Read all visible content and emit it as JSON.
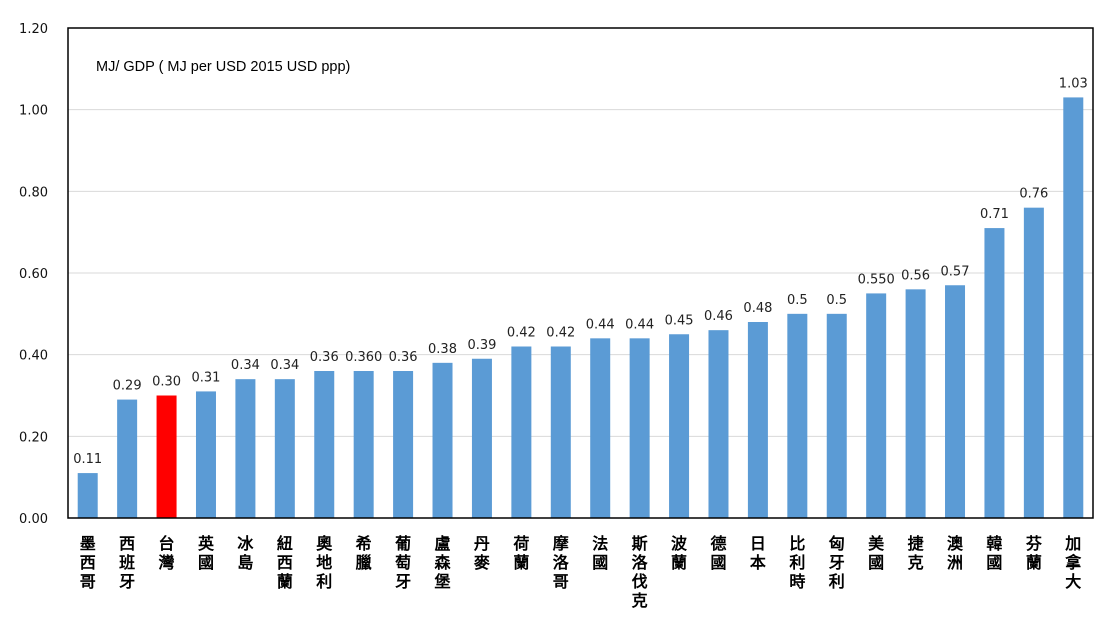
{
  "chart_data": {
    "type": "bar",
    "title": "MJ/ GDP ( MJ per  USD 2015 USD ppp)",
    "xlabel": "",
    "ylabel": "",
    "ylim": [
      0,
      1.2
    ],
    "yticks": [
      "0.00",
      "0.20",
      "0.40",
      "0.60",
      "0.80",
      "1.00",
      "1.20"
    ],
    "grid": true,
    "legend": "none",
    "bar_color": "#5B9BD5",
    "highlight_color": "#FF0000",
    "highlight_category": "台灣",
    "categories": [
      "墨西哥",
      "西班牙",
      "台灣",
      "英國",
      "冰島",
      "紐西蘭",
      "奧地利",
      "希臘",
      "葡萄牙",
      "盧森堡",
      "丹麥",
      "荷蘭",
      "摩洛哥",
      "法國",
      "斯洛伐克",
      "波蘭",
      "德國",
      "日本",
      "比利時",
      "匈牙利",
      "美國",
      "捷克",
      "澳洲",
      "韓國",
      "芬蘭",
      "加拿大"
    ],
    "values": [
      0.11,
      0.29,
      0.3,
      0.31,
      0.34,
      0.34,
      0.36,
      0.36,
      0.36,
      0.38,
      0.39,
      0.42,
      0.42,
      0.44,
      0.44,
      0.45,
      0.46,
      0.48,
      0.5,
      0.5,
      0.55,
      0.56,
      0.57,
      0.71,
      0.76,
      1.03
    ],
    "data_labels": [
      "0.11",
      "0.29",
      "0.30",
      "0.31",
      "0.34",
      "0.34",
      "0.36",
      "0.360",
      "0.36",
      "0.38",
      "0.39",
      "0.42",
      "0.42",
      "0.44",
      "0.44",
      "0.45",
      "0.46",
      "0.48",
      "0.5",
      "0.5",
      "0.550",
      "0.56",
      "0.57",
      "0.71",
      "0.76",
      "1.03"
    ]
  }
}
